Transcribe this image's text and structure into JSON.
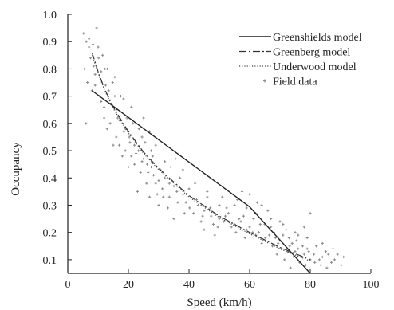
{
  "chart_data": {
    "type": "scatter",
    "xlabel": "Speed (km/h)",
    "ylabel": "Occupancy",
    "xlim": [
      0,
      100
    ],
    "ylim": [
      0.05,
      1.0
    ],
    "x_ticks": [
      "0",
      "20",
      "40",
      "60",
      "80",
      "100"
    ],
    "y_ticks": [
      "0.1",
      "0.2",
      "0.3",
      "0.4",
      "0.5",
      "0.6",
      "0.7",
      "0.8",
      "0.9",
      "1.0"
    ],
    "grid": false,
    "legend_position": "top-right",
    "series": [
      {
        "name": "Greenshields model",
        "kind": "line",
        "style": "solid",
        "color": "#222222",
        "x": [
          8,
          20,
          40,
          60,
          80
        ],
        "y": [
          0.72,
          0.622,
          0.458,
          0.294,
          0.05
        ]
      },
      {
        "name": "Greenberg model",
        "kind": "line",
        "style": "dashdot",
        "color": "#333333",
        "x": [
          8,
          10,
          12,
          15,
          20,
          25,
          30,
          40,
          50,
          60,
          70,
          80
        ],
        "y": [
          0.86,
          0.79,
          0.73,
          0.66,
          0.57,
          0.495,
          0.435,
          0.335,
          0.26,
          0.2,
          0.145,
          0.1
        ]
      },
      {
        "name": "Underwood model",
        "kind": "line",
        "style": "dotted",
        "color": "#444444",
        "x": [
          8,
          10,
          12,
          15,
          20,
          25,
          30,
          40,
          50,
          60,
          70,
          80
        ],
        "y": [
          0.85,
          0.785,
          0.725,
          0.655,
          0.565,
          0.49,
          0.43,
          0.33,
          0.255,
          0.195,
          0.14,
          0.095
        ]
      },
      {
        "name": "Field data",
        "kind": "scatter",
        "color": "#8a8a8a",
        "points": [
          [
            5.2,
            0.93
          ],
          [
            6.1,
            0.9
          ],
          [
            7.0,
            0.88
          ],
          [
            8.3,
            0.89
          ],
          [
            9.5,
            0.95
          ],
          [
            7.5,
            0.84
          ],
          [
            10.2,
            0.84
          ],
          [
            11.0,
            0.79
          ],
          [
            9.0,
            0.78
          ],
          [
            12.3,
            0.8
          ],
          [
            6.5,
            0.75
          ],
          [
            8.0,
            0.72
          ],
          [
            10.5,
            0.7
          ],
          [
            12.0,
            0.66
          ],
          [
            13.5,
            0.72
          ],
          [
            14.8,
            0.75
          ],
          [
            15.5,
            0.7
          ],
          [
            16.0,
            0.65
          ],
          [
            17.2,
            0.61
          ],
          [
            18.4,
            0.69
          ],
          [
            19.0,
            0.58
          ],
          [
            20.3,
            0.55
          ],
          [
            21.5,
            0.6
          ],
          [
            22.0,
            0.52
          ],
          [
            23.3,
            0.5
          ],
          [
            24.5,
            0.55
          ],
          [
            25.0,
            0.47
          ],
          [
            26.2,
            0.45
          ],
          [
            27.5,
            0.5
          ],
          [
            28.3,
            0.41
          ],
          [
            29.0,
            0.38
          ],
          [
            30.5,
            0.43
          ],
          [
            31.2,
            0.36
          ],
          [
            32.0,
            0.4
          ],
          [
            33.5,
            0.33
          ],
          [
            35.0,
            0.37
          ],
          [
            36.3,
            0.31
          ],
          [
            38.0,
            0.34
          ],
          [
            40.2,
            0.29
          ],
          [
            42.5,
            0.32
          ],
          [
            45.0,
            0.28
          ],
          [
            47.3,
            0.26
          ],
          [
            50.0,
            0.25
          ],
          [
            52.4,
            0.29
          ],
          [
            55.0,
            0.23
          ],
          [
            57.1,
            0.24
          ],
          [
            59.0,
            0.21
          ],
          [
            61.3,
            0.25
          ],
          [
            63.0,
            0.2
          ],
          [
            65.2,
            0.18
          ],
          [
            67.0,
            0.22
          ],
          [
            69.4,
            0.16
          ],
          [
            71.0,
            0.19
          ],
          [
            73.2,
            0.15
          ],
          [
            75.0,
            0.13
          ],
          [
            77.3,
            0.11
          ],
          [
            79.0,
            0.14
          ],
          [
            81.2,
            0.12
          ],
          [
            83.0,
            0.1
          ],
          [
            85.1,
            0.13
          ],
          [
            87.0,
            0.09
          ],
          [
            90.2,
            0.08
          ],
          [
            57.5,
            0.35
          ],
          [
            60.0,
            0.34
          ],
          [
            64.0,
            0.3
          ],
          [
            66.0,
            0.28
          ],
          [
            70.0,
            0.24
          ],
          [
            75.0,
            0.2
          ],
          [
            80.0,
            0.27
          ],
          [
            78.0,
            0.22
          ],
          [
            73.0,
            0.18
          ],
          [
            62.5,
            0.31
          ],
          [
            55.0,
            0.3
          ],
          [
            52.0,
            0.26
          ],
          [
            48.0,
            0.23
          ],
          [
            45.0,
            0.21
          ],
          [
            35.0,
            0.25
          ],
          [
            30.0,
            0.3
          ],
          [
            27.0,
            0.33
          ],
          [
            26.0,
            0.38
          ],
          [
            23.0,
            0.35
          ],
          [
            20.0,
            0.44
          ],
          [
            18.0,
            0.48
          ],
          [
            16.0,
            0.55
          ],
          [
            14.0,
            0.6
          ],
          [
            12.0,
            0.62
          ],
          [
            11.0,
            0.68
          ],
          [
            9.0,
            0.74
          ],
          [
            6.0,
            0.6
          ],
          [
            13.0,
            0.58
          ],
          [
            15.0,
            0.52
          ],
          [
            19.0,
            0.5
          ],
          [
            22.0,
            0.45
          ],
          [
            24.0,
            0.42
          ],
          [
            28.0,
            0.48
          ],
          [
            32.0,
            0.46
          ],
          [
            34.0,
            0.44
          ],
          [
            37.0,
            0.4
          ],
          [
            40.0,
            0.36
          ],
          [
            43.0,
            0.3
          ],
          [
            46.0,
            0.33
          ],
          [
            50.0,
            0.3
          ],
          [
            53.0,
            0.27
          ],
          [
            58.0,
            0.26
          ],
          [
            60.0,
            0.22
          ],
          [
            62.0,
            0.19
          ],
          [
            65.0,
            0.23
          ],
          [
            68.0,
            0.2
          ],
          [
            70.0,
            0.17
          ],
          [
            72.0,
            0.21
          ],
          [
            74.0,
            0.16
          ],
          [
            76.0,
            0.14
          ],
          [
            78.0,
            0.12
          ],
          [
            80.0,
            0.1
          ],
          [
            82.0,
            0.15
          ],
          [
            84.0,
            0.11
          ],
          [
            86.0,
            0.12
          ],
          [
            88.0,
            0.1
          ],
          [
            69.0,
            0.12
          ],
          [
            71.5,
            0.1
          ],
          [
            74.5,
            0.11
          ],
          [
            76.5,
            0.09
          ],
          [
            67.5,
            0.15
          ],
          [
            64.0,
            0.16
          ],
          [
            58.5,
            0.18
          ],
          [
            55.5,
            0.2
          ],
          [
            48.5,
            0.19
          ],
          [
            44.0,
            0.24
          ],
          [
            38.5,
            0.27
          ],
          [
            33.0,
            0.29
          ],
          [
            29.5,
            0.34
          ],
          [
            21.0,
            0.48
          ],
          [
            17.0,
            0.52
          ],
          [
            19.5,
            0.62
          ],
          [
            21.0,
            0.66
          ],
          [
            23.5,
            0.58
          ],
          [
            25.5,
            0.53
          ],
          [
            27.5,
            0.44
          ],
          [
            30.0,
            0.39
          ],
          [
            31.5,
            0.33
          ],
          [
            33.5,
            0.38
          ],
          [
            36.0,
            0.35
          ],
          [
            39.0,
            0.31
          ],
          [
            41.5,
            0.27
          ],
          [
            44.5,
            0.26
          ],
          [
            47.0,
            0.29
          ],
          [
            49.5,
            0.22
          ],
          [
            51.5,
            0.24
          ],
          [
            54.0,
            0.22
          ],
          [
            56.5,
            0.25
          ],
          [
            61.0,
            0.2
          ],
          [
            63.5,
            0.23
          ],
          [
            66.5,
            0.19
          ],
          [
            68.5,
            0.18
          ],
          [
            70.5,
            0.14
          ],
          [
            72.5,
            0.13
          ],
          [
            75.5,
            0.17
          ],
          [
            77.5,
            0.15
          ],
          [
            79.5,
            0.13
          ],
          [
            81.5,
            0.09
          ],
          [
            83.5,
            0.08
          ],
          [
            14.5,
            0.67
          ],
          [
            16.5,
            0.62
          ],
          [
            18.5,
            0.57
          ],
          [
            20.5,
            0.53
          ],
          [
            22.5,
            0.49
          ],
          [
            24.5,
            0.46
          ],
          [
            26.5,
            0.42
          ],
          [
            10.0,
            0.88
          ],
          [
            11.5,
            0.85
          ],
          [
            13.0,
            0.8
          ],
          [
            15.5,
            0.77
          ],
          [
            8.5,
            0.81
          ],
          [
            7.0,
            0.91
          ],
          [
            5.5,
            0.8
          ],
          [
            12.5,
            0.74
          ],
          [
            17.5,
            0.7
          ],
          [
            25.0,
            0.62
          ],
          [
            27.0,
            0.57
          ],
          [
            29.0,
            0.52
          ],
          [
            35.5,
            0.47
          ],
          [
            38.0,
            0.43
          ],
          [
            42.0,
            0.38
          ],
          [
            46.0,
            0.35
          ],
          [
            51.0,
            0.33
          ],
          [
            56.0,
            0.32
          ],
          [
            59.0,
            0.29
          ],
          [
            62.0,
            0.27
          ],
          [
            67.0,
            0.25
          ],
          [
            71.0,
            0.23
          ],
          [
            76.0,
            0.19
          ],
          [
            79.0,
            0.18
          ],
          [
            84.0,
            0.16
          ],
          [
            87.5,
            0.14
          ],
          [
            89.0,
            0.12
          ],
          [
            91.0,
            0.11
          ],
          [
            85.5,
            0.07
          ],
          [
            78.5,
            0.08
          ],
          [
            73.5,
            0.07
          ]
        ]
      }
    ]
  }
}
